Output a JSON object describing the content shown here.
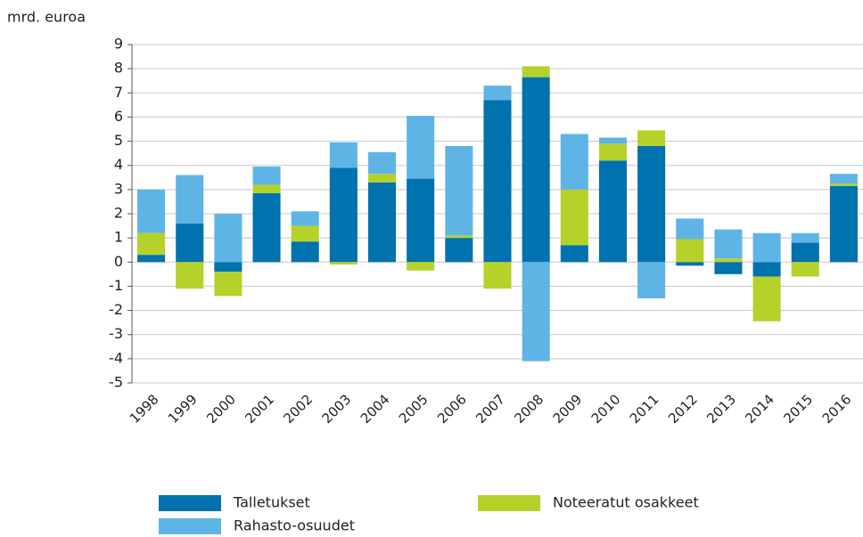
{
  "chart_data": {
    "type": "bar",
    "stacked": true,
    "y_label": "mrd. euroa",
    "categories": [
      "1998",
      "1999",
      "2000",
      "2001",
      "2002",
      "2003",
      "2004",
      "2005",
      "2006",
      "2007",
      "2008",
      "2009",
      "2010",
      "2011",
      "2012",
      "2013",
      "2014",
      "2015",
      "2016"
    ],
    "series": [
      {
        "name": "Talletukset",
        "color": "#0072ae",
        "values": [
          0.3,
          1.6,
          -0.4,
          2.85,
          0.85,
          3.9,
          3.3,
          3.45,
          1.0,
          6.7,
          7.65,
          0.7,
          4.2,
          4.8,
          -0.15,
          -0.5,
          -0.6,
          0.8,
          3.15
        ]
      },
      {
        "name": "Noteeratut osakkeet",
        "color": "#b6d12a",
        "values": [
          0.9,
          -1.1,
          -1.0,
          0.35,
          0.65,
          -0.1,
          0.35,
          -0.35,
          0.1,
          -1.1,
          0.45,
          2.3,
          0.7,
          0.65,
          0.95,
          0.15,
          -1.85,
          -0.6,
          0.1
        ]
      },
      {
        "name": "Rahasto-osuudet",
        "color": "#5fb4e6",
        "values": [
          1.8,
          2.0,
          2.0,
          0.75,
          0.6,
          1.05,
          0.9,
          2.6,
          3.7,
          0.6,
          -4.1,
          2.3,
          0.25,
          -1.5,
          0.85,
          1.2,
          1.2,
          0.4,
          0.4
        ]
      }
    ],
    "ylim": [
      -5,
      9
    ],
    "yticks": [
      -5,
      -4,
      -3,
      -2,
      -1,
      0,
      1,
      2,
      3,
      4,
      5,
      6,
      7,
      8,
      9
    ],
    "grid": true
  }
}
